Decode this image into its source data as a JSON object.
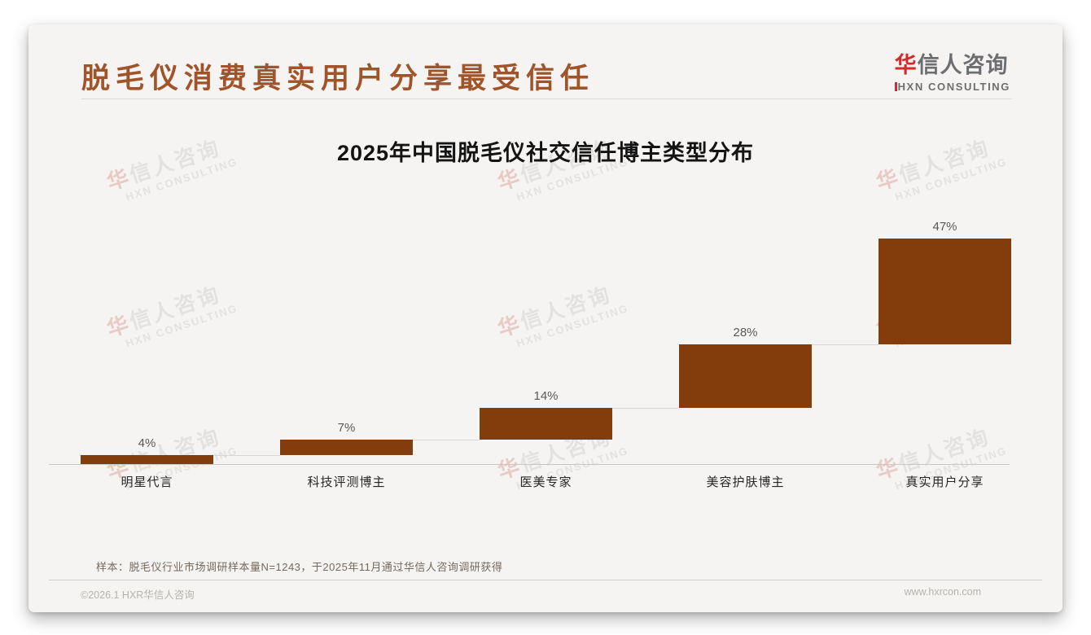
{
  "page": {
    "header": {
      "title": "脱毛仪消费真实用户分享最受信任",
      "title_color": "#a0542a"
    },
    "logo": {
      "cn_first": "华",
      "cn_rest": "信人咨询",
      "en": "HXN CONSULTING",
      "red": "#d22a2a",
      "gray": "#6d6e71"
    },
    "watermark": {
      "line1_first": "华",
      "line1_rest": "信人咨询",
      "line2": "HXN CONSULTING"
    },
    "note": "样本：脱毛仪行业市场调研样本量N=1243，于2025年11月通过华信人咨询调研获得",
    "footer": {
      "copyright": "©2026.1 HXR华信人咨询",
      "website": "www.hxrcon.com"
    }
  },
  "chart_data": {
    "type": "bar",
    "subtype": "waterfall",
    "title": "2025年中国脱毛仪社交信任博主类型分布",
    "categories": [
      "明星代言",
      "科技评测博主",
      "医美专家",
      "美容护肤博主",
      "真实用户分享"
    ],
    "values": [
      4,
      7,
      14,
      28,
      47
    ],
    "value_labels": [
      "4%",
      "7%",
      "14%",
      "28%",
      "47%"
    ],
    "unit": "%",
    "ylim": [
      0,
      100
    ],
    "total": 100,
    "bar_color": "#833d0d",
    "value_label_color": "#595959",
    "connector_color": "#d9d7d4",
    "grid": false,
    "legend": false,
    "note": "waterfall-style: each bar rises from the cumulative sum of previous bars; light connector lines join consecutive bars; values sum to 100%"
  }
}
